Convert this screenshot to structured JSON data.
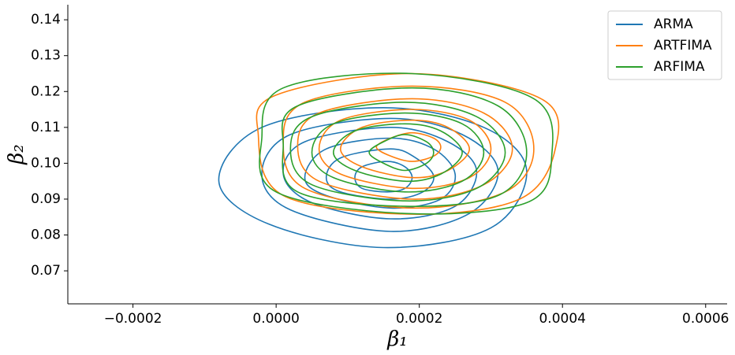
{
  "chart_data": {
    "type": "contour",
    "xlabel": "β₁",
    "ylabel": "β₂",
    "xlim": [
      -0.000291,
      0.00063
    ],
    "ylim": [
      0.0608,
      0.1442
    ],
    "xticks": [
      {
        "value": -0.0002,
        "label": "−0.0002"
      },
      {
        "value": 0,
        "label": "0.0000"
      },
      {
        "value": 0.0002,
        "label": "0.0002"
      },
      {
        "value": 0.0004,
        "label": "0.0004"
      },
      {
        "value": 0.0006,
        "label": "0.0006"
      }
    ],
    "yticks": [
      0.07,
      0.08,
      0.09,
      {
        "value": 0.1,
        "label": "0.10"
      },
      0.11,
      0.12,
      0.13,
      0.14
    ],
    "legend": "upper right",
    "series": [
      {
        "name": "ARMA",
        "color": "#1f77b4",
        "contours": [
          {
            "x": [
              0.00035,
              0.00029,
              0.00015,
              -2e-05,
              -8e-05,
              -1e-05,
              0.00015,
              0.0003
            ],
            "y": [
              0.098,
              0.11,
              0.1155,
              0.11,
              0.095,
              0.083,
              0.0765,
              0.082
            ]
          },
          {
            "x": [
              0.00031,
              0.00026,
              0.00016,
              2e-05,
              -2e-05,
              2e-05,
              0.00016,
              0.00027
            ],
            "y": [
              0.098,
              0.108,
              0.1125,
              0.108,
              0.097,
              0.087,
              0.081,
              0.086
            ]
          },
          {
            "x": [
              0.00028,
              0.00024,
              0.00016,
              4e-05,
              1e-05,
              5e-05,
              0.00016,
              0.00025
            ],
            "y": [
              0.098,
              0.106,
              0.11,
              0.106,
              0.097,
              0.089,
              0.0845,
              0.088
            ]
          },
          {
            "x": [
              0.00025,
              0.00022,
              0.00016,
              7e-05,
              4e-05,
              7e-05,
              0.00016,
              0.00023
            ],
            "y": [
              0.097,
              0.104,
              0.107,
              0.104,
              0.096,
              0.091,
              0.0875,
              0.09
            ]
          },
          {
            "x": [
              0.00022,
              0.000195,
              0.00016,
              9e-05,
              7e-05,
              9e-05,
              0.00016,
              0.000205
            ],
            "y": [
              0.0965,
              0.1015,
              0.104,
              0.1015,
              0.096,
              0.092,
              0.09,
              0.092
            ]
          },
          {
            "x": [
              0.00019,
              0.00018,
              0.000155,
              0.00012,
              0.00011,
              0.00012,
              0.000155,
              0.00018
            ],
            "y": [
              0.096,
              0.099,
              0.1005,
              0.099,
              0.096,
              0.093,
              0.092,
              0.093
            ]
          }
        ]
      },
      {
        "name": "ARTFIMA",
        "color": "#ff7f0e",
        "contours": [
          {
            "x": [
              0.00039,
              0.00037,
              0.00019,
              0.0,
              -2.5e-05,
              1e-05,
              0.00019,
              0.00034
            ],
            "y": [
              0.104,
              0.118,
              0.125,
              0.119,
              0.108,
              0.091,
              0.0858,
              0.09
            ]
          },
          {
            "x": [
              0.00036,
              0.00032,
              0.00019,
              4e-05,
              1e-05,
              4e-05,
              0.00019,
              0.00032
            ],
            "y": [
              0.104,
              0.117,
              0.1215,
              0.117,
              0.106,
              0.093,
              0.0875,
              0.092
            ]
          },
          {
            "x": [
              0.00033,
              0.00029,
              0.00019,
              6e-05,
              3e-05,
              6e-05,
              0.00019,
              0.00029
            ],
            "y": [
              0.104,
              0.114,
              0.118,
              0.114,
              0.105,
              0.095,
              0.09,
              0.094
            ]
          },
          {
            "x": [
              0.0003,
              0.00027,
              0.00019,
              9e-05,
              6e-05,
              9e-05,
              0.00019,
              0.00027
            ],
            "y": [
              0.104,
              0.112,
              0.115,
              0.112,
              0.104,
              0.097,
              0.093,
              0.096
            ]
          },
          {
            "x": [
              0.00027,
              0.00024,
              0.00019,
              0.00012,
              9e-05,
              0.00012,
              0.00019,
              0.00024
            ],
            "y": [
              0.104,
              0.11,
              0.112,
              0.11,
              0.104,
              0.099,
              0.096,
              0.098
            ]
          },
          {
            "x": [
              0.00023,
              0.00022,
              0.00019,
              0.00016,
              0.00014,
              0.00016,
              0.00019,
              0.00022
            ],
            "y": [
              0.1045,
              0.107,
              0.1085,
              0.107,
              0.1045,
              0.102,
              0.1005,
              0.102
            ]
          }
        ]
      },
      {
        "name": "ARFIMA",
        "color": "#2ca02c",
        "contours": [
          {
            "x": [
              0.000385,
              0.00036,
              0.00019,
              1e-05,
              -2e-05,
              0.0,
              0.00018,
              0.00035
            ],
            "y": [
              0.102,
              0.118,
              0.125,
              0.121,
              0.107,
              0.092,
              0.086,
              0.089
            ]
          },
          {
            "x": [
              0.00035,
              0.00031,
              0.00019,
              3e-05,
              1e-05,
              3e-05,
              0.00018,
              0.00031
            ],
            "y": [
              0.103,
              0.116,
              0.121,
              0.116,
              0.105,
              0.092,
              0.088,
              0.091
            ]
          },
          {
            "x": [
              0.00032,
              0.00028,
              0.00018,
              5e-05,
              2e-05,
              5e-05,
              0.00018,
              0.00028
            ],
            "y": [
              0.103,
              0.113,
              0.117,
              0.113,
              0.104,
              0.094,
              0.0895,
              0.093
            ]
          },
          {
            "x": [
              0.00029,
              0.00026,
              0.00018,
              8e-05,
              5e-05,
              8e-05,
              0.00018,
              0.00026
            ],
            "y": [
              0.103,
              0.111,
              0.114,
              0.111,
              0.103,
              0.096,
              0.092,
              0.095
            ]
          },
          {
            "x": [
              0.00026,
              0.00023,
              0.00018,
              0.00011,
              8e-05,
              0.00011,
              0.00018,
              0.00023
            ],
            "y": [
              0.103,
              0.109,
              0.111,
              0.109,
              0.103,
              0.098,
              0.095,
              0.097
            ]
          },
          {
            "x": [
              0.00022,
              0.00021,
              0.00018,
              0.00015,
              0.00013,
              0.00015,
              0.00018,
              0.00021
            ],
            "y": [
              0.103,
              0.106,
              0.108,
              0.106,
              0.103,
              0.1,
              0.098,
              0.1
            ]
          }
        ]
      }
    ]
  }
}
